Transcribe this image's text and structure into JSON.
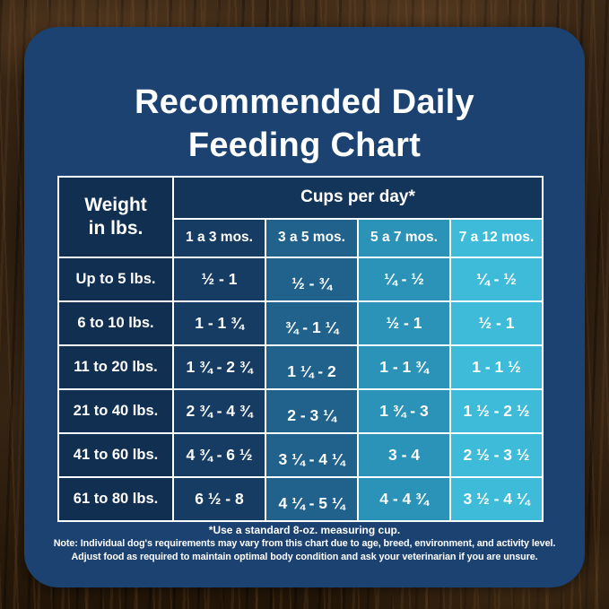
{
  "title": {
    "line1": "Recommended Daily",
    "line2": "Feeding Chart"
  },
  "table": {
    "weight_header": {
      "line1": "Weight",
      "line2": "in lbs."
    },
    "cups_header": "Cups per day*",
    "age_columns": [
      "1 a 3 mos.",
      "3 a 5 mos.",
      "5 a 7 mos.",
      "7 a 12 mos."
    ],
    "rows": [
      {
        "weight": "Up to 5 lbs.",
        "values": [
          "½ - 1",
          "½ - ¾",
          "¼ - ½",
          "¼ - ½"
        ]
      },
      {
        "weight": "6 to 10 lbs.",
        "values": [
          "1 - 1 ¾",
          "¾ - 1 ¼",
          "½ - 1",
          "½ - 1"
        ]
      },
      {
        "weight": "11 to 20 lbs.",
        "values": [
          "1 ¾ - 2 ¾",
          "1 ¼ - 2",
          "1 - 1 ¾",
          "1 - 1 ½"
        ]
      },
      {
        "weight": "21 to 40 lbs.",
        "values": [
          "2 ¾ - 4 ¾",
          "2 - 3 ¼",
          "1 ¾ - 3",
          "1 ½ - 2 ½"
        ]
      },
      {
        "weight": "41 to 60 lbs.",
        "values": [
          "4 ¾ - 6 ½",
          "3 ¼ - 4 ¼",
          "3 - 4",
          "2 ½ - 3 ½"
        ]
      },
      {
        "weight": "61 to 80 lbs.",
        "values": [
          "6 ½ - 8",
          "4 ¼ - 5 ¼",
          "4 - 4 ¾",
          "3 ½ - 4 ¼"
        ]
      }
    ]
  },
  "footer": {
    "cup_note": "*Use a standard 8-oz. measuring cup.",
    "note_line1": "Note: Individual dog's requirements may vary from this chart due to age, breed, environment, and activity level.",
    "note_line2": "Adjust food as required to maintain optimal body condition and ask your veterinarian if you are unsure."
  },
  "colors": {
    "wood_base": "#2e1f11",
    "card_navy": "#1b4271",
    "col_weight": "#112f51",
    "header_band": "#14355a",
    "col_age1": "#173c63",
    "col_age2": "#20628c",
    "col_age3": "#2b93b7",
    "col_age4": "#3dbbd9",
    "border_white": "#ffffff",
    "text_white": "#ffffff"
  },
  "chart_data": {
    "type": "table",
    "title": "Recommended Daily Feeding Chart",
    "unit": "Cups per day (standard 8-oz. measuring cup)",
    "columns": [
      "Weight in lbs.",
      "1 a 3 mos.",
      "3 a 5 mos.",
      "5 a 7 mos.",
      "7 a 12 mos."
    ],
    "rows": [
      [
        "Up to 5 lbs.",
        "½ - 1",
        "½ - ¾",
        "¼ - ½",
        "¼ - ½"
      ],
      [
        "6 to 10 lbs.",
        "1 - 1 ¾",
        "¾ - 1 ¼",
        "½ - 1",
        "½ - 1"
      ],
      [
        "11 to 20 lbs.",
        "1 ¾ - 2 ¾",
        "1 ¼ - 2",
        "1 - 1 ¾",
        "1 - 1 ½"
      ],
      [
        "21 to 40 lbs.",
        "2 ¾ - 4 ¾",
        "2 - 3 ¼",
        "1 ¾ - 3",
        "1 ½ - 2 ½"
      ],
      [
        "41 to 60 lbs.",
        "4 ¾ - 6 ½",
        "3 ¼ - 4 ¼",
        "3 - 4",
        "2 ½ - 3 ½"
      ],
      [
        "61 to 80 lbs.",
        "6 ½ - 8",
        "4 ¼ - 5 ¼",
        "4 - 4 ¾",
        "3 ½ - 4 ¼"
      ]
    ]
  }
}
